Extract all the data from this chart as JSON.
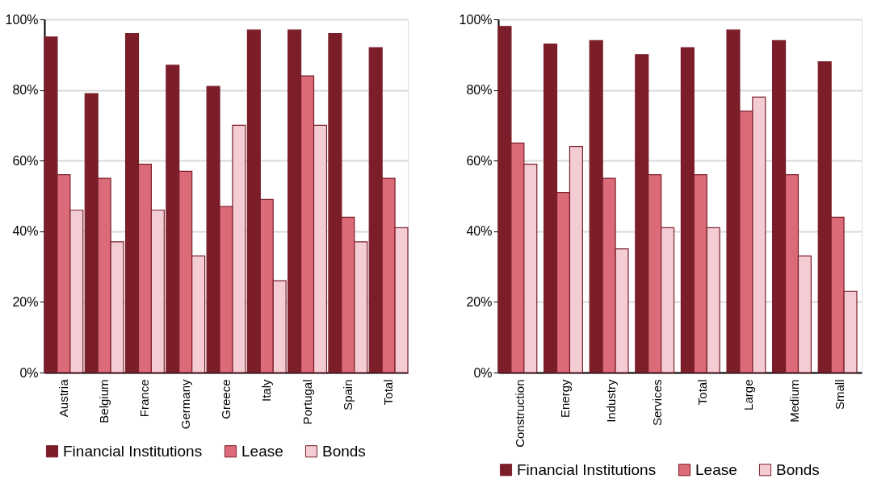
{
  "chart_data": [
    {
      "type": "bar",
      "categories": [
        "Austria",
        "Belgium",
        "France",
        "Germany",
        "Greece",
        "Italy",
        "Portugal",
        "Spain",
        "Total"
      ],
      "series": [
        {
          "name": "Financial Institutions",
          "color": "#7b1e2a",
          "values": [
            95,
            79,
            96,
            87,
            81,
            97,
            97,
            96,
            92
          ]
        },
        {
          "name": "Lease",
          "color": "#db6b79",
          "values": [
            56,
            55,
            59,
            57,
            47,
            49,
            84,
            44,
            55
          ]
        },
        {
          "name": "Bonds",
          "color": "#f3cdd3",
          "values": [
            46,
            37,
            46,
            33,
            70,
            26,
            70,
            37,
            41
          ]
        }
      ],
      "ylim": [
        0,
        100
      ],
      "yticks": [
        {
          "value": 0,
          "label": "0%"
        },
        {
          "value": 20,
          "label": "20%"
        },
        {
          "value": 40,
          "label": "40%"
        },
        {
          "value": 60,
          "label": "60%"
        },
        {
          "value": 80,
          "label": "80%"
        },
        {
          "value": 100,
          "label": "100%"
        }
      ],
      "grid": "y",
      "legend": "bottom"
    },
    {
      "type": "bar",
      "categories": [
        "Construction",
        "Energy",
        "Industry",
        "Services",
        "Total",
        "Large",
        "Medium",
        "Small"
      ],
      "series": [
        {
          "name": "Financial Institutions",
          "color": "#7b1e2a",
          "values": [
            98,
            93,
            94,
            90,
            92,
            97,
            94,
            88
          ]
        },
        {
          "name": "Lease",
          "color": "#db6b79",
          "values": [
            65,
            51,
            55,
            56,
            56,
            74,
            56,
            44
          ]
        },
        {
          "name": "Bonds",
          "color": "#f3cdd3",
          "values": [
            59,
            64,
            35,
            41,
            41,
            78,
            33,
            23
          ]
        }
      ],
      "ylim": [
        0,
        100
      ],
      "yticks": [
        {
          "value": 0,
          "label": "0%"
        },
        {
          "value": 20,
          "label": "20%"
        },
        {
          "value": 40,
          "label": "40%"
        },
        {
          "value": 60,
          "label": "60%"
        },
        {
          "value": 80,
          "label": "80%"
        },
        {
          "value": 100,
          "label": "100%"
        }
      ],
      "grid": "y",
      "legend": "bottom"
    }
  ]
}
